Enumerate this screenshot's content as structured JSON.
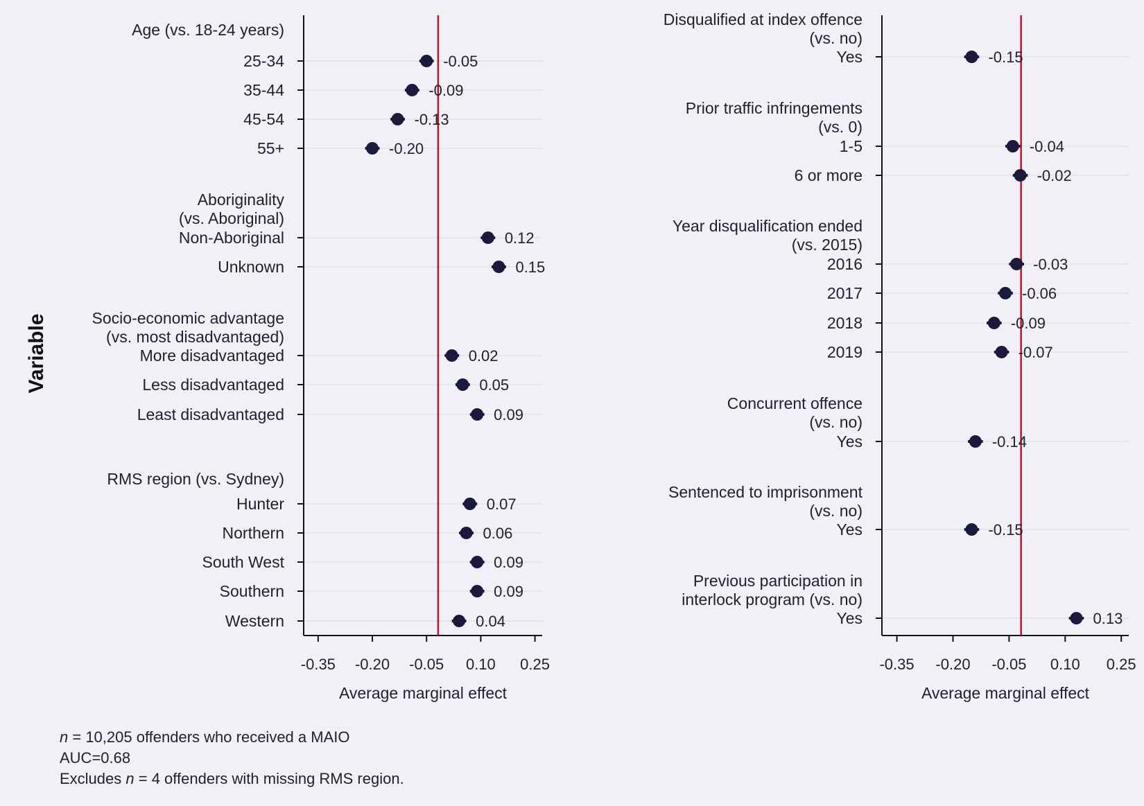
{
  "y_axis_title": "Variable",
  "chart_data": [
    {
      "type": "scatter",
      "subtype": "coefficient-plot",
      "xlabel": "Average marginal effect",
      "xticks": [
        "-0.35",
        "-0.20",
        "-0.05",
        "0.10",
        "0.25"
      ],
      "xtick_values": [
        -0.35,
        -0.2,
        -0.05,
        0.1,
        0.25
      ],
      "xlim": [
        -0.39,
        0.27
      ],
      "reference_line": -0.018,
      "reference_color": "#c0122f",
      "marker_color": "#1c1a3c",
      "groups": [
        {
          "heading": [
            "Age (vs. 18-24 years)"
          ],
          "items": [
            {
              "label": "25-34",
              "value": -0.05,
              "value_label": "-0.05",
              "ci": [
                -0.07,
                -0.03
              ]
            },
            {
              "label": "35-44",
              "value": -0.09,
              "value_label": "-0.09",
              "ci": [
                -0.11,
                -0.07
              ]
            },
            {
              "label": "45-54",
              "value": -0.13,
              "value_label": "-0.13",
              "ci": [
                -0.15,
                -0.11
              ]
            },
            {
              "label": "55+",
              "value": -0.2,
              "value_label": "-0.20",
              "ci": [
                -0.22,
                -0.18
              ]
            }
          ]
        },
        {
          "heading": [
            "Aboriginality",
            "(vs. Aboriginal)"
          ],
          "items": [
            {
              "label": "Non-Aboriginal",
              "value": 0.12,
              "value_label": "0.12",
              "ci": [
                0.1,
                0.14
              ]
            },
            {
              "label": "Unknown",
              "value": 0.15,
              "value_label": "0.15",
              "ci": [
                0.13,
                0.17
              ]
            }
          ]
        },
        {
          "heading": [
            "Socio-economic advantage",
            "(vs. most disadvantaged)"
          ],
          "items": [
            {
              "label": "More disadvantaged",
              "value": 0.02,
              "value_label": "0.02",
              "ci": [
                0.0,
                0.04
              ]
            },
            {
              "label": "Less disadvantaged",
              "value": 0.05,
              "value_label": "0.05",
              "ci": [
                0.03,
                0.07
              ]
            },
            {
              "label": "Least disadvantaged",
              "value": 0.09,
              "value_label": "0.09",
              "ci": [
                0.07,
                0.11
              ]
            }
          ]
        },
        {
          "heading": [
            "RMS region (vs. Sydney)"
          ],
          "items": [
            {
              "label": "Hunter",
              "value": 0.07,
              "value_label": "0.07",
              "ci": [
                0.05,
                0.09
              ]
            },
            {
              "label": "Northern",
              "value": 0.06,
              "value_label": "0.06",
              "ci": [
                0.04,
                0.08
              ]
            },
            {
              "label": "South West",
              "value": 0.09,
              "value_label": "0.09",
              "ci": [
                0.07,
                0.11
              ]
            },
            {
              "label": "Southern",
              "value": 0.09,
              "value_label": "0.09",
              "ci": [
                0.07,
                0.11
              ]
            },
            {
              "label": "Western",
              "value": 0.04,
              "value_label": "0.04",
              "ci": [
                0.02,
                0.06
              ]
            }
          ]
        }
      ]
    },
    {
      "type": "scatter",
      "subtype": "coefficient-plot",
      "xlabel": "Average marginal effect",
      "xticks": [
        "-0.35",
        "-0.20",
        "-0.05",
        "0.10",
        "0.25"
      ],
      "xtick_values": [
        -0.35,
        -0.2,
        -0.05,
        0.1,
        0.25
      ],
      "xlim": [
        -0.39,
        0.27
      ],
      "reference_line": -0.018,
      "reference_color": "#c0122f",
      "marker_color": "#1c1a3c",
      "groups": [
        {
          "heading": [
            "Disqualified at index offence",
            "(vs. no)"
          ],
          "items": [
            {
              "label": "Yes",
              "value": -0.15,
              "value_label": "-0.15",
              "ci": [
                -0.17,
                -0.13
              ]
            }
          ]
        },
        {
          "heading": [
            "Prior traffic infringements",
            "(vs. 0)"
          ],
          "items": [
            {
              "label": "1-5",
              "value": -0.04,
              "value_label": "-0.04",
              "ci": [
                -0.06,
                -0.02
              ]
            },
            {
              "label": "6 or more",
              "value": -0.02,
              "value_label": "-0.02",
              "ci": [
                -0.04,
                0.0
              ]
            }
          ]
        },
        {
          "heading": [
            "Year disqualification ended",
            "(vs. 2015)"
          ],
          "items": [
            {
              "label": "2016",
              "value": -0.03,
              "value_label": "-0.03",
              "ci": [
                -0.05,
                -0.01
              ]
            },
            {
              "label": "2017",
              "value": -0.06,
              "value_label": "-0.06",
              "ci": [
                -0.08,
                -0.04
              ]
            },
            {
              "label": "2018",
              "value": -0.09,
              "value_label": "-0.09",
              "ci": [
                -0.11,
                -0.07
              ]
            },
            {
              "label": "2019",
              "value": -0.07,
              "value_label": "-0.07",
              "ci": [
                -0.09,
                -0.05
              ]
            }
          ]
        },
        {
          "heading": [
            "Concurrent offence",
            "(vs. no)"
          ],
          "items": [
            {
              "label": "Yes",
              "value": -0.14,
              "value_label": "-0.14",
              "ci": [
                -0.16,
                -0.12
              ]
            }
          ]
        },
        {
          "heading": [
            "Sentenced to imprisonment",
            "(vs. no)"
          ],
          "items": [
            {
              "label": "Yes",
              "value": -0.15,
              "value_label": "-0.15",
              "ci": [
                -0.17,
                -0.13
              ]
            }
          ]
        },
        {
          "heading": [
            "Previous participation in",
            "interlock program (vs. no)"
          ],
          "items": [
            {
              "label": "Yes",
              "value": 0.13,
              "value_label": "0.13",
              "ci": [
                0.11,
                0.15
              ]
            }
          ]
        }
      ]
    }
  ],
  "footnotes": {
    "line1_italic": "n",
    "line1_rest": " = 10,205 offenders who received a MAIO",
    "line2": "AUC=0.68",
    "line3_prefix": "Excludes ",
    "line3_italic": "n",
    "line3_rest": " = 4 offenders with missing RMS region."
  }
}
